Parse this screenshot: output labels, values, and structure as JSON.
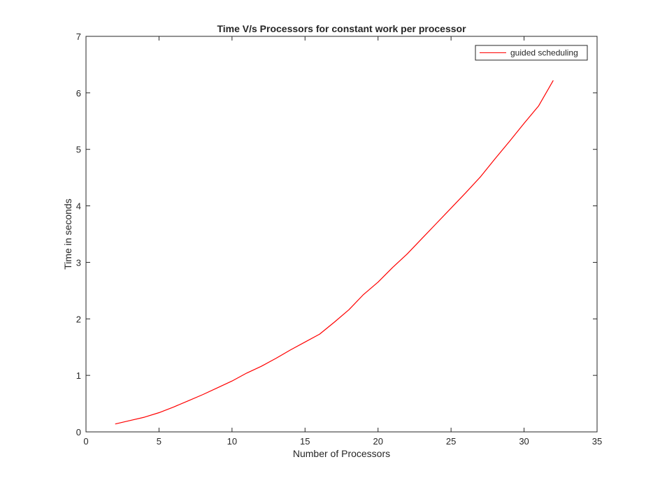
{
  "chart_data": {
    "type": "line",
    "title": "Time V/s Processors for constant work per processor",
    "xlabel": "Number of Processors",
    "ylabel": "Time in seconds",
    "xlim": [
      0,
      35
    ],
    "ylim": [
      0,
      7
    ],
    "xticks": [
      0,
      5,
      10,
      15,
      20,
      25,
      30,
      35
    ],
    "yticks": [
      0,
      1,
      2,
      3,
      4,
      5,
      6,
      7
    ],
    "grid": false,
    "legend_position": "top-right",
    "series": [
      {
        "name": "guided scheduling",
        "color": "#ff0000",
        "x": [
          2,
          3,
          4,
          5,
          6,
          7,
          8,
          9,
          10,
          11,
          12,
          13,
          14,
          15,
          16,
          17,
          18,
          19,
          20,
          21,
          22,
          23,
          24,
          25,
          26,
          27,
          28,
          29,
          30,
          31,
          32
        ],
        "y": [
          0.14,
          0.2,
          0.26,
          0.34,
          0.44,
          0.55,
          0.66,
          0.78,
          0.9,
          1.04,
          1.16,
          1.3,
          1.45,
          1.59,
          1.73,
          1.94,
          2.16,
          2.43,
          2.65,
          2.91,
          3.15,
          3.42,
          3.69,
          3.96,
          4.23,
          4.51,
          4.83,
          5.14,
          5.46,
          5.77,
          6.22
        ]
      }
    ]
  }
}
